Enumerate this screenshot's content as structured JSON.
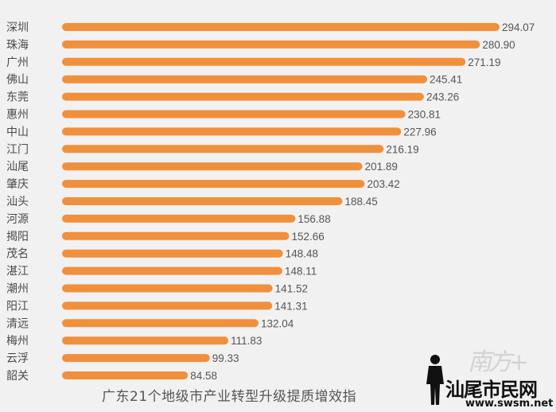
{
  "chart_data": {
    "type": "bar",
    "orientation": "horizontal",
    "title": "广东21个地级市产业转型升级提质增效指",
    "categories": [
      "深圳",
      "珠海",
      "广州",
      "佛山",
      "东莞",
      "惠州",
      "中山",
      "江门",
      "汕尾",
      "肇庆",
      "汕头",
      "河源",
      "揭阳",
      "茂名",
      "湛江",
      "潮州",
      "阳江",
      "清远",
      "梅州",
      "云浮",
      "韶关"
    ],
    "values": [
      294.07,
      280.9,
      271.19,
      245.41,
      243.26,
      230.81,
      227.96,
      216.19,
      201.89,
      203.42,
      188.45,
      156.88,
      152.66,
      148.48,
      148.11,
      141.52,
      141.31,
      132.04,
      111.83,
      99.33,
      84.58
    ],
    "value_labels": [
      "294.07",
      "280.90",
      "271.19",
      "245.41",
      "243.26",
      "230.81",
      "227.96",
      "216.19",
      "201.89",
      "203.42",
      "188.45",
      "156.88",
      "152.66",
      "148.48",
      "148.11",
      "141.52",
      "141.31",
      "132.04",
      "111.83",
      "99.33",
      "84.58"
    ],
    "xlim": [
      0,
      294.07
    ],
    "grid": false,
    "bar_color": "#f0903c"
  },
  "watermark": {
    "brush_text": "南方+",
    "site_name": "汕尾市民网",
    "site_url": "www.swsm.net"
  }
}
